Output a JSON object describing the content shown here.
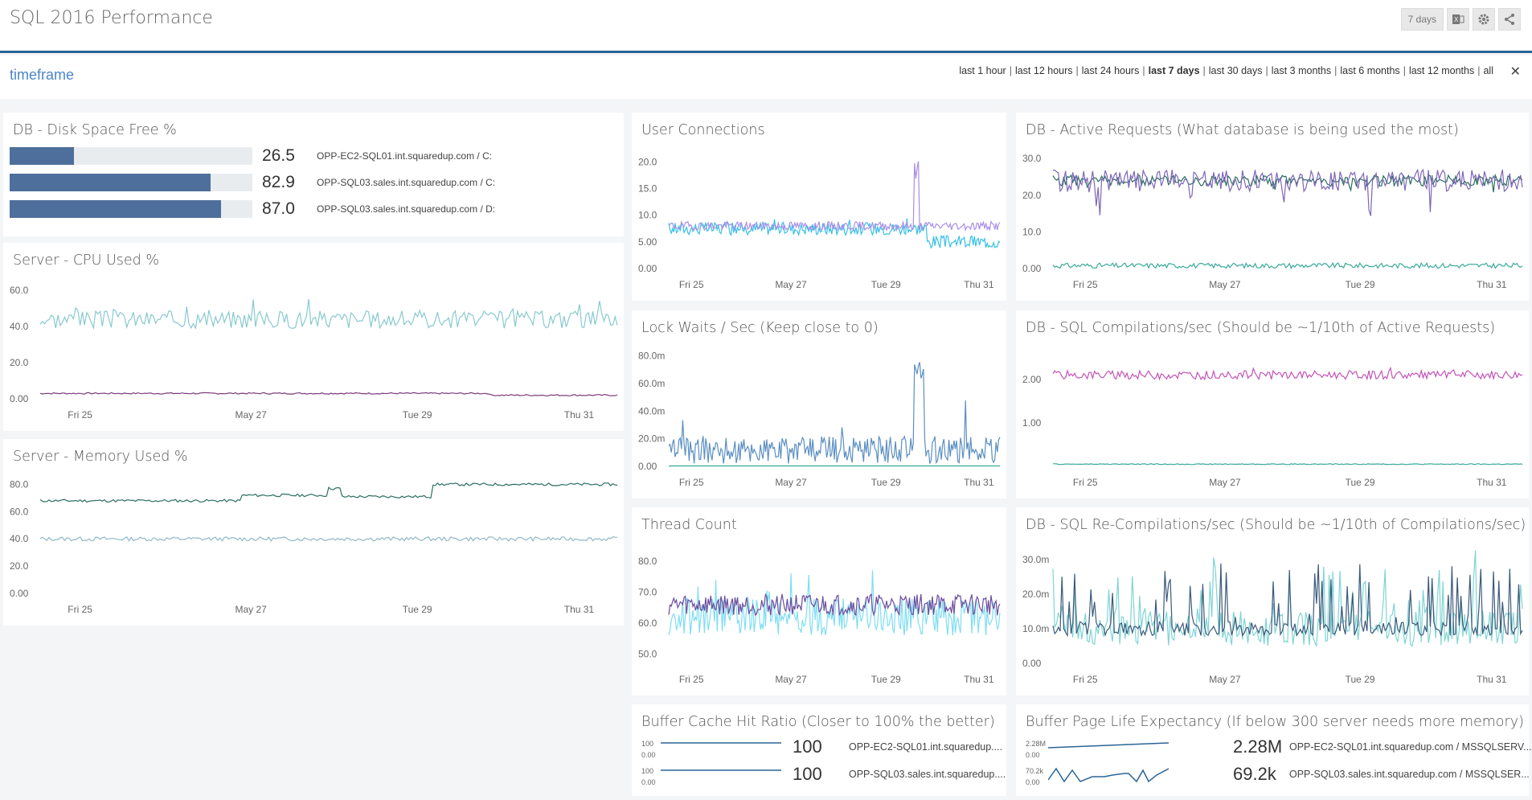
{
  "app": {
    "title": "SQL 2016 Performance"
  },
  "toolbar": {
    "range_label": "7 days",
    "icons": [
      "excel-icon",
      "gear-icon",
      "share-icon"
    ]
  },
  "timeframe": {
    "label": "timeframe",
    "options": [
      "last 1 hour",
      "last 12 hours",
      "last 24 hours",
      "last 7 days",
      "last 30 days",
      "last 3 months",
      "last 6 months",
      "last 12 months",
      "all"
    ],
    "selected": "last 7 days",
    "close": "✕"
  },
  "x_ticks": [
    "Fri 25",
    "May 27",
    "Tue 29",
    "Thu 31"
  ],
  "disk_space": {
    "title": "DB - Disk Space Free %",
    "rows": [
      {
        "value": "26.5",
        "pct": 26.5,
        "label": "OPP-EC2-SQL01.int.squaredup.com / C:"
      },
      {
        "value": "82.9",
        "pct": 82.9,
        "label": "OPP-SQL03.sales.int.squaredup.com / C:"
      },
      {
        "value": "87.0",
        "pct": 87.0,
        "label": "OPP-SQL03.sales.int.squaredup.com / D:"
      }
    ]
  },
  "colors": {
    "accent": "#2a6496",
    "bar": "#4e6f9c",
    "teal": "#88c9d0",
    "purple": "#7b3a7e",
    "green": "#2a6e5f",
    "lav": "#a98ee6",
    "cyan": "#35c0e6",
    "blue": "#5b8fc2",
    "magenta": "#c453b8",
    "tealg": "#39a99a",
    "violet": "#7e66b8",
    "navy": "#3b5a7a"
  },
  "chart_data": [
    {
      "id": "cpu",
      "type": "line",
      "title": "Server - CPU Used %",
      "yticks": [
        "60.0",
        "40.0",
        "20.0",
        "0.00"
      ],
      "ylim": [
        0,
        65
      ],
      "series": [
        {
          "color": "#88c9d0",
          "base": 44,
          "noise": 5,
          "spikes": 0.04,
          "spike_amp": 15,
          "seed": 3
        },
        {
          "color": "#7b3a7e",
          "base": 3,
          "noise": 0.4,
          "spikes": 0,
          "spike_amp": 0,
          "seed": 7,
          "steps": [
            [
              0.78,
              2
            ]
          ]
        }
      ]
    },
    {
      "id": "mem",
      "type": "line",
      "title": "Server - Memory Used %",
      "yticks": [
        "80.0",
        "60.0",
        "40.0",
        "20.0",
        "0.00"
      ],
      "ylim": [
        0,
        85
      ],
      "series": [
        {
          "color": "#2a6e5f",
          "base": 68,
          "noise": 1,
          "spikes": 0,
          "spike_amp": 0,
          "seed": 11,
          "steps": [
            [
              0.35,
              72
            ],
            [
              0.5,
              77
            ],
            [
              0.52,
              71
            ],
            [
              0.68,
              80
            ]
          ]
        },
        {
          "color": "#8fb8c8",
          "base": 40,
          "noise": 1.5,
          "spikes": 0,
          "spike_amp": 0,
          "seed": 13
        }
      ]
    },
    {
      "id": "conn",
      "type": "line",
      "title": "User Connections",
      "yticks": [
        "20.0",
        "15.0",
        "10.0",
        "5.00",
        "0.00"
      ],
      "ylim": [
        0,
        22
      ],
      "series": [
        {
          "color": "#35c0e6",
          "base": 7.5,
          "noise": 1.2,
          "spikes": 0.02,
          "spike_amp": 4,
          "seed": 17,
          "steps": [
            [
              0.78,
              5
            ]
          ]
        },
        {
          "color": "#a98ee6",
          "base": 8,
          "noise": 0.8,
          "spikes": 0,
          "spike_amp": 0,
          "seed": 19,
          "burst": [
            0.74,
            0.755,
            21
          ]
        }
      ]
    },
    {
      "id": "active",
      "type": "line",
      "title": "DB - Active Requests (What database is being used the most)",
      "yticks": [
        "30.0",
        "20.0",
        "10.0",
        "0.00"
      ],
      "ylim": [
        0,
        32
      ],
      "series": [
        {
          "color": "#2a6e5f",
          "base": 24,
          "noise": 1.5,
          "spikes": 0.03,
          "spike_amp": -8,
          "seed": 23
        },
        {
          "color": "#7e66b8",
          "base": 24,
          "noise": 3,
          "spikes": 0.03,
          "spike_amp": -10,
          "seed": 29
        },
        {
          "color": "#39a99a",
          "base": 0.8,
          "noise": 0.7,
          "spikes": 0,
          "spike_amp": 0,
          "seed": 31
        }
      ]
    },
    {
      "id": "lock",
      "type": "line",
      "title": "Lock Waits / Sec (Keep close to 0)",
      "yticks": [
        "80.0m",
        "60.0m",
        "40.0m",
        "20.0m",
        "0.00"
      ],
      "ylim": [
        0,
        85
      ],
      "series": [
        {
          "color": "#5b8fc2",
          "base": 12,
          "noise": 10,
          "spikes": 0.03,
          "spike_amp": 30,
          "seed": 37,
          "burst": [
            0.74,
            0.77,
            80
          ]
        },
        {
          "color": "#39a99a",
          "base": 0.3,
          "noise": 0,
          "spikes": 0,
          "spike_amp": 0,
          "seed": 41
        }
      ]
    },
    {
      "id": "comp",
      "type": "line",
      "title": "DB - SQL Compilations/sec (Should be ~1/10th of Active Requests)",
      "yticks": [
        "2.00",
        "1.00"
      ],
      "ylim": [
        0,
        2.7
      ],
      "series": [
        {
          "color": "#c453b8",
          "base": 2.1,
          "noise": 0.1,
          "spikes": 0.02,
          "spike_amp": 0.2,
          "seed": 43
        },
        {
          "color": "#39a99a",
          "base": 0.05,
          "noise": 0.01,
          "spikes": 0,
          "spike_amp": 0,
          "seed": 47
        }
      ]
    },
    {
      "id": "thread",
      "type": "line",
      "title": "Thread Count",
      "yticks": [
        "80.0",
        "70.0",
        "60.0",
        "50.0"
      ],
      "ylim": [
        47,
        85
      ],
      "series": [
        {
          "color": "#7eddf2",
          "base": 62,
          "noise": 6,
          "spikes": 0.05,
          "spike_amp": 15,
          "seed": 53
        },
        {
          "color": "#6a4d9e",
          "base": 66,
          "noise": 3.5,
          "spikes": 0,
          "spike_amp": 0,
          "seed": 59
        }
      ]
    },
    {
      "id": "recomp",
      "type": "line",
      "title": "DB - SQL Re-Compilations/sec (Should be ~1/10th of Compilations/sec)",
      "yticks": [
        "30.0m",
        "20.0m",
        "10.0m",
        "0.00"
      ],
      "ylim": [
        0,
        34
      ],
      "series": [
        {
          "color": "#7fd4d4",
          "base": 10,
          "noise": 5,
          "spikes": 0.25,
          "spike_amp": 18,
          "seed": 61
        },
        {
          "color": "#3b5a7a",
          "base": 10,
          "noise": 2,
          "spikes": 0.2,
          "spike_amp": 20,
          "seed": 67
        }
      ]
    }
  ],
  "buffer_cache": {
    "title": "Buffer Cache Hit Ratio (Closer to 100% the better)",
    "rows": [
      {
        "hi": "100",
        "lo": "0.00",
        "value": "100",
        "label": "OPP-EC2-SQL01.int.squaredup...."
      },
      {
        "hi": "100",
        "lo": "0.00",
        "value": "100",
        "label": "OPP-SQL03.sales.int.squaredup...."
      }
    ]
  },
  "page_life": {
    "title": "Buffer Page Life Expectancy (If below 300 server needs more memory)",
    "rows": [
      {
        "hi": "2.28M",
        "lo": "0.00",
        "value": "2.28M",
        "label": "OPP-EC2-SQL01.int.squaredup.com / MSSQLSERV..."
      },
      {
        "hi": "70.2k",
        "lo": "0.00",
        "value": "69.2k",
        "label": "OPP-SQL03.sales.int.squaredup.com / MSSQLSER..."
      }
    ]
  }
}
